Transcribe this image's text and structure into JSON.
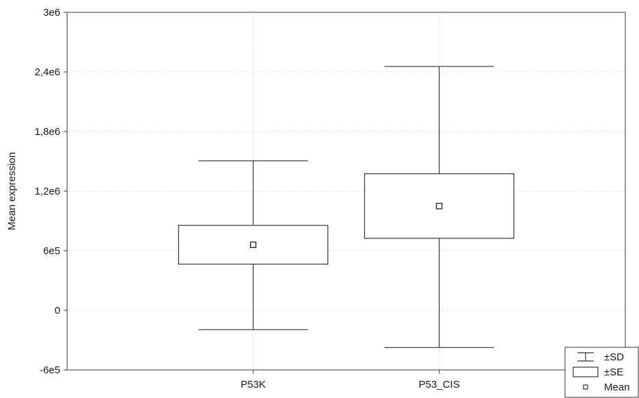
{
  "chart_data": {
    "type": "box",
    "ylabel": "Mean expression",
    "xlabel": "",
    "ylim": [
      -600000,
      3000000
    ],
    "yticks": [
      -600000,
      0,
      600000,
      1200000,
      1800000,
      2400000,
      3000000
    ],
    "ytick_labels": [
      "-6e5",
      "0",
      "6e5",
      "1,2e6",
      "1,8e6",
      "2,4e6",
      "3e6"
    ],
    "grid": true,
    "categories": [
      "P53K",
      "P53_CIS"
    ],
    "boxes": [
      {
        "category": "P53K",
        "mean": 660000,
        "se_low": 465000,
        "se_high": 855000,
        "sd_low": -195000,
        "sd_high": 1505000
      },
      {
        "category": "P53_CIS",
        "mean": 1050000,
        "se_low": 725000,
        "se_high": 1375000,
        "sd_low": -375000,
        "sd_high": 2455000
      }
    ],
    "legend": {
      "position": "bottom-right",
      "entries": [
        {
          "symbol": "whisker",
          "label": "±SD"
        },
        {
          "symbol": "box",
          "label": "±SE"
        },
        {
          "symbol": "square",
          "label": "Mean"
        }
      ]
    },
    "colors": {
      "line": "#444444",
      "grid": "#cccccc",
      "background": "#ffffff"
    }
  }
}
